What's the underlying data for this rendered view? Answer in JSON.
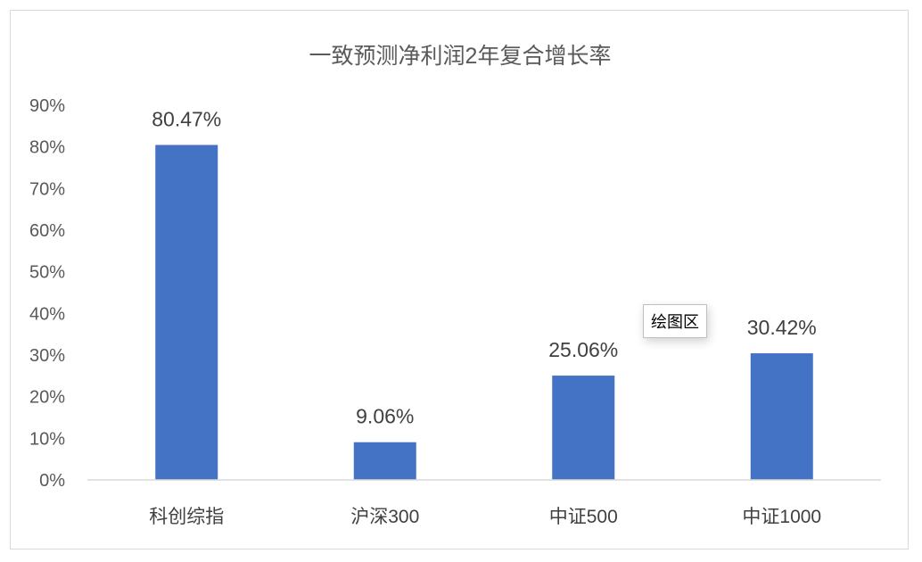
{
  "chart_data": {
    "type": "bar",
    "title": "一致预测净利润2年复合增长率",
    "categories": [
      "科创综指",
      "沪深300",
      "中证500",
      "中证1000"
    ],
    "values": [
      80.47,
      9.06,
      25.06,
      30.42
    ],
    "data_labels": [
      "80.47%",
      "9.06%",
      "25.06%",
      "30.42%"
    ],
    "ylim": [
      0,
      90
    ],
    "yticks": [
      0,
      10,
      20,
      30,
      40,
      50,
      60,
      70,
      80,
      90
    ],
    "ytick_labels": [
      "0%",
      "10%",
      "20%",
      "30%",
      "40%",
      "50%",
      "60%",
      "70%",
      "80%",
      "90%"
    ],
    "grid": false,
    "bar_color": "#4472c4",
    "xlabel": "",
    "ylabel": ""
  },
  "tooltip": {
    "text": "绘图区"
  }
}
